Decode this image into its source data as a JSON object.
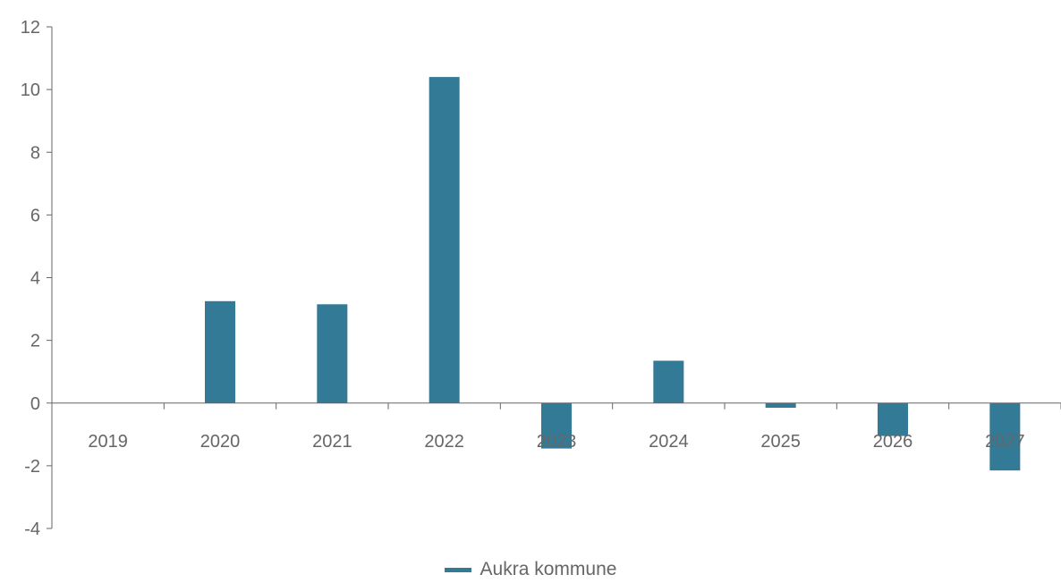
{
  "chart_data": {
    "type": "bar",
    "categories": [
      "2019",
      "2020",
      "2021",
      "2022",
      "2023",
      "2024",
      "2025",
      "2026",
      "2027"
    ],
    "series": [
      {
        "name": "Aukra kommune",
        "values": [
          0,
          3.25,
          3.15,
          10.4,
          -1.45,
          1.35,
          -0.15,
          -1.05,
          -2.15
        ],
        "color": "#337a97"
      }
    ],
    "y_ticks": [
      "-4",
      "-2",
      "0",
      "2",
      "4",
      "6",
      "8",
      "10",
      "12"
    ],
    "ylim": [
      -4,
      12
    ],
    "title": "",
    "xlabel": "",
    "ylabel": "",
    "grid": false,
    "legend_position": "bottom-center",
    "axis_color": "#666666"
  }
}
